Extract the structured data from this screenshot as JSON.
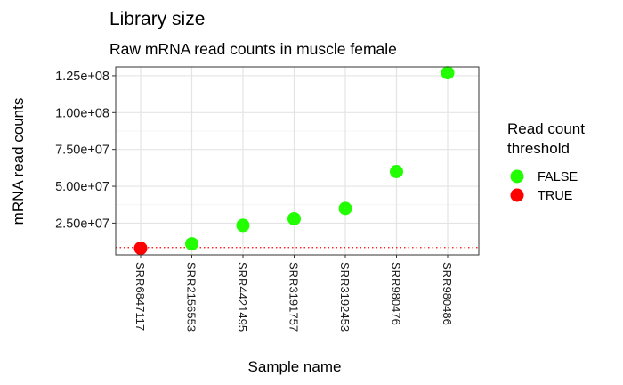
{
  "chart_data": {
    "type": "scatter",
    "title": "Library size",
    "subtitle": "Raw mRNA read counts in muscle female",
    "xlabel": "Sample name",
    "ylabel": "mRNA read counts",
    "categories": [
      "SRR6847117",
      "SRR2156553",
      "SRR4421495",
      "SRR3191757",
      "SRR3192453",
      "SRR980476",
      "SRR980486"
    ],
    "values": [
      8000000,
      11000000,
      23500000,
      28000000,
      35000000,
      60000000,
      127000000
    ],
    "below_threshold": [
      true,
      false,
      false,
      false,
      false,
      false,
      false
    ],
    "threshold_value": 8500000,
    "ylim": [
      3500000,
      131000000
    ],
    "yticks": [
      25000000,
      50000000,
      75000000,
      100000000,
      125000000
    ],
    "ytick_labels": [
      "2.50e+07",
      "5.00e+07",
      "7.50e+07",
      "1.00e+08",
      "1.25e+08"
    ],
    "grid": true,
    "legend": {
      "title_line1": "Read count",
      "title_line2": "threshold",
      "placement": "right",
      "entries": [
        {
          "label": "FALSE",
          "color": "#22ff00"
        },
        {
          "label": "TRUE",
          "color": "#ff0000"
        }
      ]
    },
    "colors": {
      "false": "#22ff00",
      "true": "#ff0000",
      "threshold_line": "#ff0000"
    }
  }
}
